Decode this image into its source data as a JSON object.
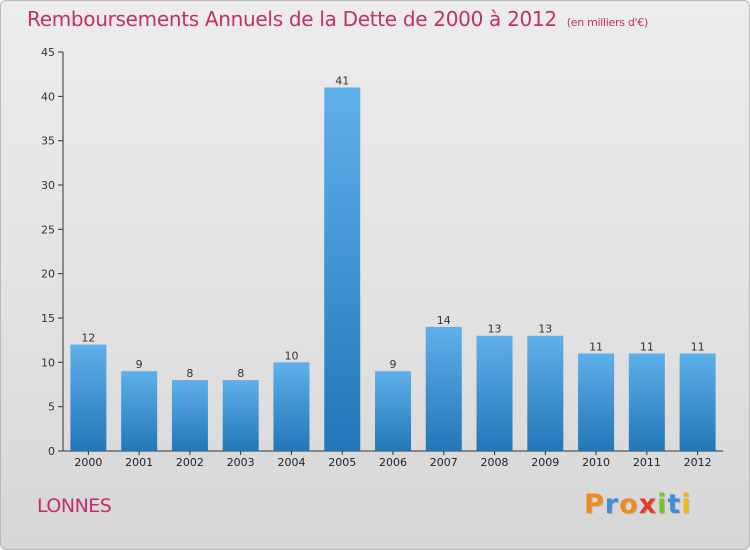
{
  "title": "Remboursements Annuels de la Dette de 2000 à 2012",
  "title_unit": "(en milliers d'€)",
  "commune": "LONNES",
  "brand": {
    "letters": [
      "P",
      "r",
      "o",
      "x",
      "i",
      "t",
      "i"
    ],
    "colors": [
      "#f08a1e",
      "#3d8fd6",
      "#f08a1e",
      "#e23a2c",
      "#7fbf2a",
      "#3d8fd6",
      "#f2b51c"
    ]
  },
  "colors": {
    "bar_light": "#5fb0ea",
    "bar_dark": "#2277b8",
    "title": "#c0306a",
    "axis": "#333333"
  },
  "chart_data": {
    "type": "bar",
    "categories": [
      "2000",
      "2001",
      "2002",
      "2003",
      "2004",
      "2005",
      "2006",
      "2007",
      "2008",
      "2009",
      "2010",
      "2011",
      "2012"
    ],
    "values": [
      12,
      9,
      8,
      8,
      10,
      41,
      9,
      14,
      13,
      13,
      11,
      11,
      11
    ],
    "data_labels": [
      "12",
      "9",
      "8",
      "8",
      "10",
      "41",
      "9",
      "14",
      "13",
      "13",
      "11",
      "11",
      "11"
    ],
    "ylim": [
      0,
      45
    ],
    "yticks": [
      0,
      5,
      10,
      15,
      20,
      25,
      30,
      35,
      40,
      45
    ],
    "grid": false,
    "xlabel": "",
    "ylabel": ""
  }
}
